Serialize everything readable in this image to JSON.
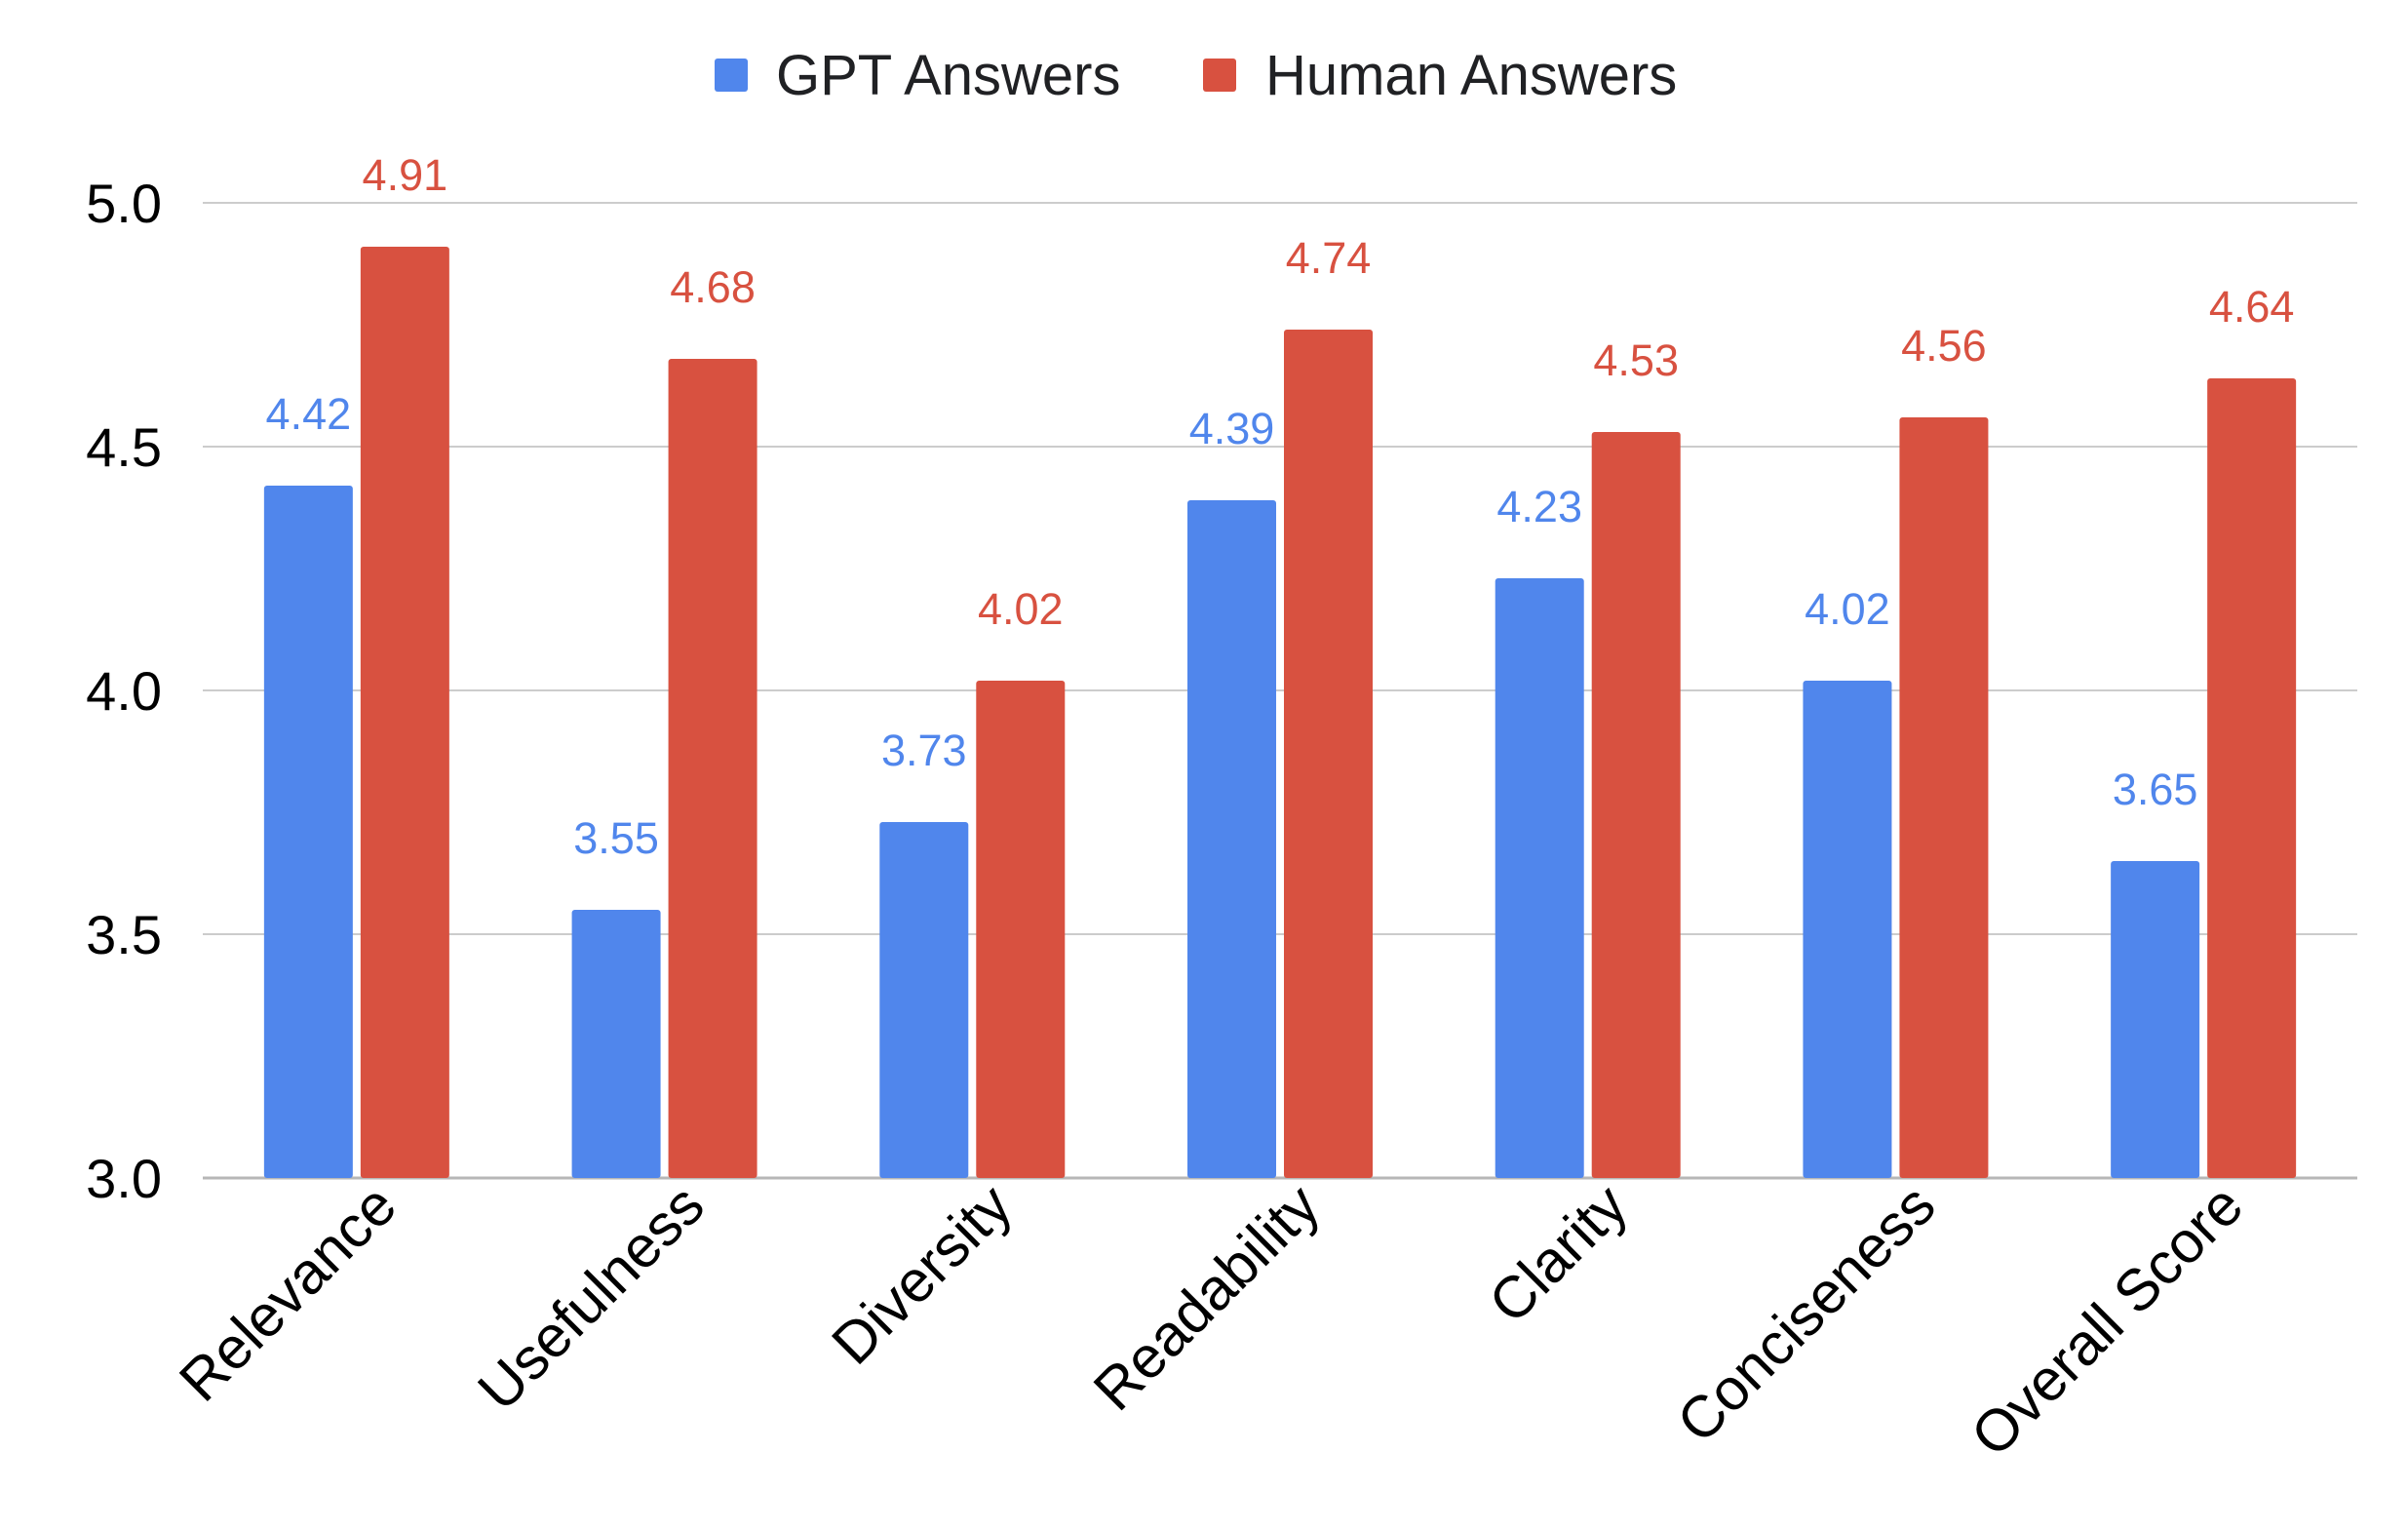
{
  "chart_data": {
    "type": "bar",
    "title": "",
    "xlabel": "",
    "ylabel": "",
    "categories": [
      "Relevance",
      "Usefulness",
      "Diversity",
      "Readability",
      "Clarity",
      "Conciseness",
      "Overall Score"
    ],
    "series": [
      {
        "name": "GPT Answers",
        "color": "#5086ec",
        "values": [
          4.42,
          3.55,
          3.73,
          4.39,
          4.23,
          4.02,
          3.65
        ],
        "labels": [
          "4.42",
          "3.55",
          "3.73",
          "4.39",
          "4.23",
          "4.02",
          "3.65"
        ]
      },
      {
        "name": "Human Answers",
        "color": "#d85140",
        "values": [
          4.91,
          4.68,
          4.02,
          4.74,
          4.53,
          4.56,
          4.64
        ],
        "labels": [
          "4.91",
          "4.68",
          "4.02",
          "4.74",
          "4.53",
          "4.56",
          "4.64"
        ]
      }
    ],
    "ylim": [
      3.0,
      5.0
    ],
    "yticks": [
      "3.0",
      "3.5",
      "4.0",
      "4.5",
      "5.0"
    ],
    "grid": true,
    "legend_position": "top-center",
    "label_color_gpt": "#5086ec",
    "label_color_human": "#d85140"
  }
}
